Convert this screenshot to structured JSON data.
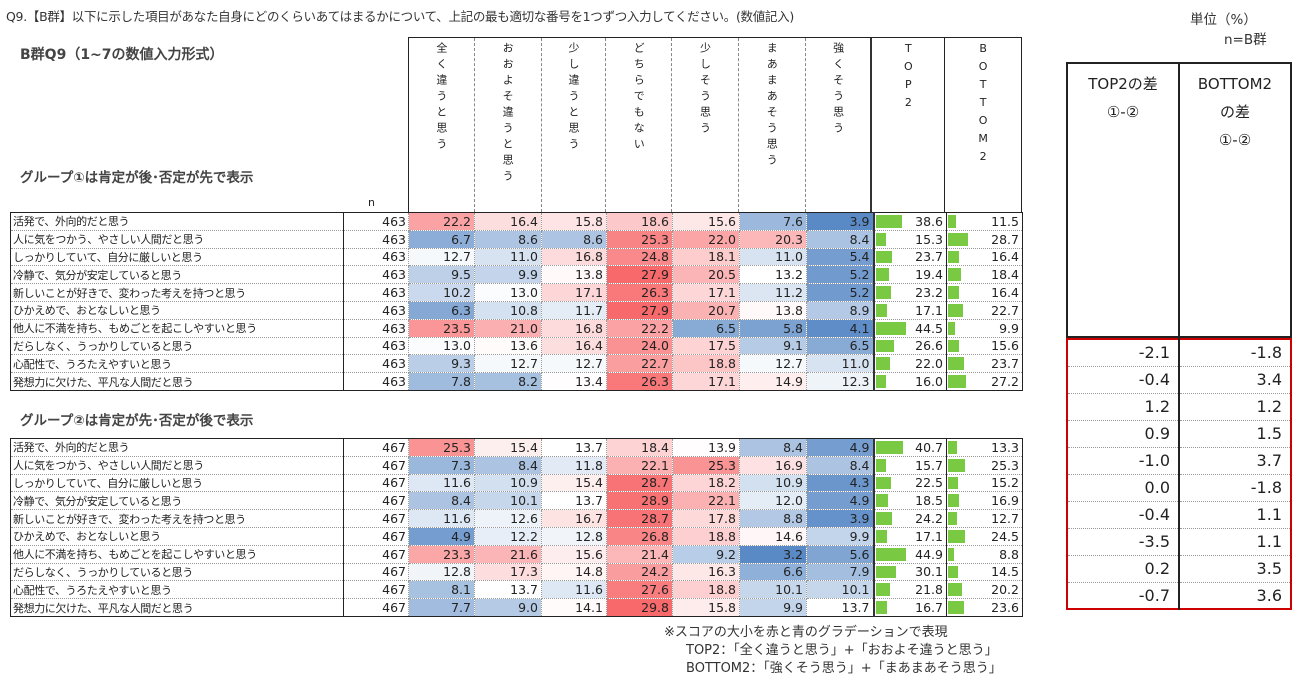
{
  "question": "Q9.【B群】以下に示した項目があなた自身にどのくらいあてはまるかについて、上記の最も適切な番号を1つずつ入力してください。(数値記入)",
  "unit": "単位（%）",
  "n_base": "n=B群",
  "subtitle": "B群Q9（1~7の数値入力形式）",
  "group1_title": "グループ①は肯定が後･否定が先で表示",
  "group2_title": "グループ②は肯定が先･否定が後で表示",
  "n_label": "n",
  "columns": [
    "全く違うと思う",
    "おおよそ違うと思う",
    "少し違うと思う",
    "どちらでもない",
    "少しそう思う",
    "まあまあそう思う",
    "強くそう思う",
    "TOP2",
    "BOTTOM2"
  ],
  "colors": {
    "high": "#f8696b",
    "mid": "#ffffff",
    "low": "#5a8ac6",
    "bar": "#7ac943",
    "diff_border": "#cc0000"
  },
  "group1": [
    {
      "label": "活発で、外向的だと思う",
      "n": "463",
      "v": [
        22.2,
        16.4,
        15.8,
        18.6,
        15.6,
        7.6,
        3.9
      ],
      "top2": 38.6,
      "bottom2": 11.5
    },
    {
      "label": "人に気をつかう、やさしい人間だと思う",
      "n": "463",
      "v": [
        6.7,
        8.6,
        8.6,
        25.3,
        22.0,
        20.3,
        8.4
      ],
      "top2": 15.3,
      "bottom2": 28.7
    },
    {
      "label": "しっかりしていて、自分に厳しいと思う",
      "n": "463",
      "v": [
        12.7,
        11.0,
        16.8,
        24.8,
        18.1,
        11.0,
        5.4
      ],
      "top2": 23.7,
      "bottom2": 16.4
    },
    {
      "label": "冷静で、気分が安定していると思う",
      "n": "463",
      "v": [
        9.5,
        9.9,
        13.8,
        27.9,
        20.5,
        13.2,
        5.2
      ],
      "top2": 19.4,
      "bottom2": 18.4
    },
    {
      "label": "新しいことが好きで、変わった考えを持つと思う",
      "n": "463",
      "v": [
        10.2,
        13.0,
        17.1,
        26.3,
        17.1,
        11.2,
        5.2
      ],
      "top2": 23.2,
      "bottom2": 16.4
    },
    {
      "label": "ひかえめで、おとなしいと思う",
      "n": "463",
      "v": [
        6.3,
        10.8,
        11.7,
        27.9,
        20.7,
        13.8,
        8.9
      ],
      "top2": 17.1,
      "bottom2": 22.7
    },
    {
      "label": "他人に不満を持ち、もめごとを起こしやすいと思う",
      "n": "463",
      "v": [
        23.5,
        21.0,
        16.8,
        22.2,
        6.5,
        5.8,
        4.1
      ],
      "top2": 44.5,
      "bottom2": 9.9
    },
    {
      "label": "だらしなく、うっかりしていると思う",
      "n": "463",
      "v": [
        13.0,
        13.6,
        16.4,
        24.0,
        17.5,
        9.1,
        6.5
      ],
      "top2": 26.6,
      "bottom2": 15.6
    },
    {
      "label": "心配性で、うろたえやすいと思う",
      "n": "463",
      "v": [
        9.3,
        12.7,
        12.7,
        22.7,
        18.8,
        12.7,
        11.0
      ],
      "top2": 22.0,
      "bottom2": 23.7
    },
    {
      "label": "発想力に欠けた、平凡な人間だと思う",
      "n": "463",
      "v": [
        7.8,
        8.2,
        13.4,
        26.3,
        17.1,
        14.9,
        12.3
      ],
      "top2": 16.0,
      "bottom2": 27.2
    }
  ],
  "group2": [
    {
      "label": "活発で、外向的だと思う",
      "n": "467",
      "v": [
        25.3,
        15.4,
        13.7,
        18.4,
        13.9,
        8.4,
        4.9
      ],
      "top2": 40.7,
      "bottom2": 13.3
    },
    {
      "label": "人に気をつかう、やさしい人間だと思う",
      "n": "467",
      "v": [
        7.3,
        8.4,
        11.8,
        22.1,
        25.3,
        16.9,
        8.4
      ],
      "top2": 15.7,
      "bottom2": 25.3
    },
    {
      "label": "しっかりしていて、自分に厳しいと思う",
      "n": "467",
      "v": [
        11.6,
        10.9,
        15.4,
        28.7,
        18.2,
        10.9,
        4.3
      ],
      "top2": 22.5,
      "bottom2": 15.2
    },
    {
      "label": "冷静で、気分が安定していると思う",
      "n": "467",
      "v": [
        8.4,
        10.1,
        13.7,
        28.9,
        22.1,
        12.0,
        4.9
      ],
      "top2": 18.5,
      "bottom2": 16.9
    },
    {
      "label": "新しいことが好きで、変わった考えを持つと思う",
      "n": "467",
      "v": [
        11.6,
        12.6,
        16.7,
        28.7,
        17.8,
        8.8,
        3.9
      ],
      "top2": 24.2,
      "bottom2": 12.7
    },
    {
      "label": "ひかえめで、おとなしいと思う",
      "n": "467",
      "v": [
        4.9,
        12.2,
        12.8,
        26.8,
        18.8,
        14.6,
        9.9
      ],
      "top2": 17.1,
      "bottom2": 24.5
    },
    {
      "label": "他人に不満を持ち、もめごとを起こしやすいと思う",
      "n": "467",
      "v": [
        23.3,
        21.6,
        15.6,
        21.4,
        9.2,
        3.2,
        5.6
      ],
      "top2": 44.9,
      "bottom2": 8.8
    },
    {
      "label": "だらしなく、うっかりしていると思う",
      "n": "467",
      "v": [
        12.8,
        17.3,
        14.8,
        24.2,
        16.3,
        6.6,
        7.9
      ],
      "top2": 30.1,
      "bottom2": 14.5
    },
    {
      "label": "心配性で、うろたえやすいと思う",
      "n": "467",
      "v": [
        8.1,
        13.7,
        11.6,
        27.6,
        18.8,
        10.1,
        10.1
      ],
      "top2": 21.8,
      "bottom2": 20.2
    },
    {
      "label": "発想力に欠けた、平凡な人間だと思う",
      "n": "467",
      "v": [
        7.7,
        9.0,
        14.1,
        29.8,
        15.8,
        9.9,
        13.7
      ],
      "top2": 16.7,
      "bottom2": 23.6
    }
  ],
  "diff": {
    "header_top2": [
      "TOP2の差",
      "①-②"
    ],
    "header_bottom2": [
      "BOTTOM2",
      "の差",
      "①-②"
    ],
    "rows": [
      [
        "-2.1",
        "-1.8"
      ],
      [
        "-0.4",
        "3.4"
      ],
      [
        "1.2",
        "1.2"
      ],
      [
        "0.9",
        "1.5"
      ],
      [
        "-1.0",
        "3.7"
      ],
      [
        "0.0",
        "-1.8"
      ],
      [
        "-0.4",
        "1.1"
      ],
      [
        "-3.5",
        "1.1"
      ],
      [
        "0.2",
        "3.5"
      ],
      [
        "-0.7",
        "3.6"
      ]
    ]
  },
  "notes": [
    "※スコアの大小を赤と青のグラデーションで表現",
    "TOP2：「全く違うと思う」+「おおよそ違うと思う」",
    "BOTTOM2：「強くそう思う」+「まあまあそう思う」"
  ]
}
